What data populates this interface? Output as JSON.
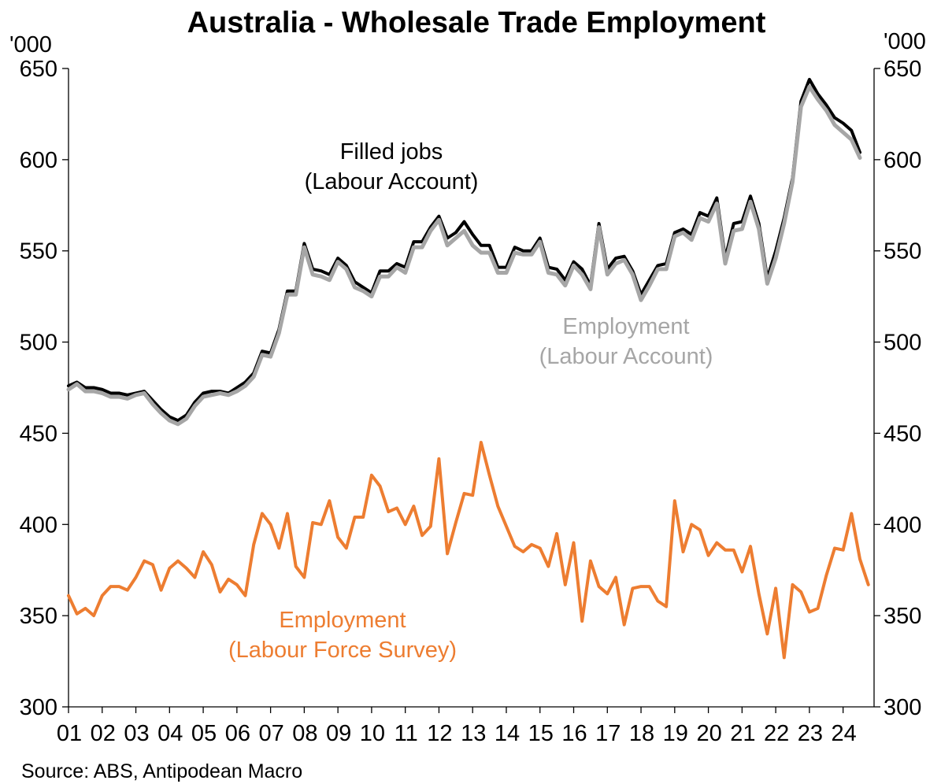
{
  "chart_data": {
    "type": "line",
    "title": "Australia - Wholesale Trade Employment",
    "y_unit_left": "'000",
    "y_unit_right": "'000",
    "ylim": [
      300,
      650
    ],
    "yticks": [
      650,
      600,
      550,
      500,
      450,
      400,
      350,
      300
    ],
    "xlim": [
      2001.0,
      2024.92
    ],
    "xticks": [
      "01",
      "02",
      "03",
      "04",
      "05",
      "06",
      "07",
      "08",
      "09",
      "10",
      "11",
      "12",
      "13",
      "14",
      "15",
      "16",
      "17",
      "18",
      "19",
      "20",
      "21",
      "22",
      "23",
      "24"
    ],
    "grid": false,
    "source": "Source: ABS, Antipodean Macro",
    "annotations": {
      "filled_jobs": [
        "Filled jobs",
        "(Labour Account)"
      ],
      "employment_la": [
        "Employment",
        "(Labour Account)"
      ],
      "employment_lfs": [
        "Employment",
        "(Labour Force Survey)"
      ]
    },
    "colors": {
      "filled_jobs": "#000000",
      "employment_la": "#a6a6a6",
      "employment_lfs": "#ed7d31"
    },
    "series": [
      {
        "name": "Filled jobs (Labour Account)",
        "key": "filled_jobs",
        "freq": "quarterly",
        "x_start": 2001.0,
        "values": [
          476,
          478,
          475,
          475,
          474,
          472,
          472,
          471,
          472,
          473,
          468,
          463,
          459,
          457,
          460,
          467,
          472,
          473,
          473,
          472,
          475,
          478,
          483,
          495,
          494,
          507,
          528,
          528,
          554,
          540,
          539,
          537,
          546,
          542,
          533,
          530,
          527,
          539,
          539,
          543,
          541,
          555,
          555,
          563,
          569,
          557,
          560,
          566,
          559,
          553,
          553,
          541,
          541,
          552,
          550,
          550,
          557,
          541,
          540,
          534,
          544,
          540,
          531,
          565,
          540,
          546,
          547,
          539,
          526,
          534,
          542,
          543,
          560,
          562,
          559,
          571,
          569,
          579,
          546,
          565,
          566,
          580,
          565,
          535,
          550,
          568,
          590,
          632,
          644,
          636,
          630,
          623,
          620,
          616,
          604
        ]
      },
      {
        "name": "Employment (Labour Account)",
        "key": "employment_la",
        "freq": "quarterly",
        "x_start": 2001.0,
        "values": [
          474,
          477,
          473,
          473,
          472,
          470,
          470,
          469,
          471,
          472,
          466,
          461,
          457,
          455,
          458,
          465,
          470,
          471,
          472,
          471,
          473,
          476,
          481,
          493,
          492,
          505,
          526,
          526,
          552,
          537,
          536,
          534,
          544,
          540,
          530,
          528,
          525,
          536,
          536,
          541,
          538,
          552,
          552,
          561,
          567,
          553,
          557,
          561,
          553,
          549,
          549,
          538,
          538,
          549,
          548,
          548,
          555,
          538,
          537,
          531,
          542,
          537,
          529,
          563,
          537,
          543,
          545,
          537,
          523,
          531,
          540,
          540,
          558,
          560,
          556,
          568,
          566,
          576,
          543,
          561,
          562,
          577,
          562,
          532,
          546,
          565,
          588,
          629,
          640,
          633,
          627,
          619,
          615,
          611,
          601
        ]
      },
      {
        "name": "Employment (Labour Force Survey)",
        "key": "employment_lfs",
        "freq": "quarterly",
        "x_start": 2001.0,
        "values": [
          361,
          351,
          354,
          350,
          361,
          366,
          366,
          364,
          371,
          380,
          378,
          364,
          376,
          380,
          376,
          371,
          385,
          378,
          363,
          370,
          367,
          361,
          389,
          406,
          400,
          387,
          406,
          377,
          371,
          401,
          400,
          413,
          393,
          387,
          404,
          404,
          427,
          421,
          407,
          409,
          400,
          410,
          394,
          399,
          436,
          384,
          401,
          417,
          416,
          445,
          427,
          410,
          399,
          388,
          385,
          389,
          387,
          377,
          395,
          367,
          390,
          347,
          380,
          366,
          362,
          371,
          345,
          365,
          366,
          366,
          358,
          355,
          413,
          385,
          400,
          397,
          383,
          390,
          386,
          386,
          374,
          388,
          362,
          340,
          365,
          327,
          367,
          363,
          352,
          354,
          372,
          387,
          386,
          406,
          381,
          367
        ]
      }
    ]
  }
}
